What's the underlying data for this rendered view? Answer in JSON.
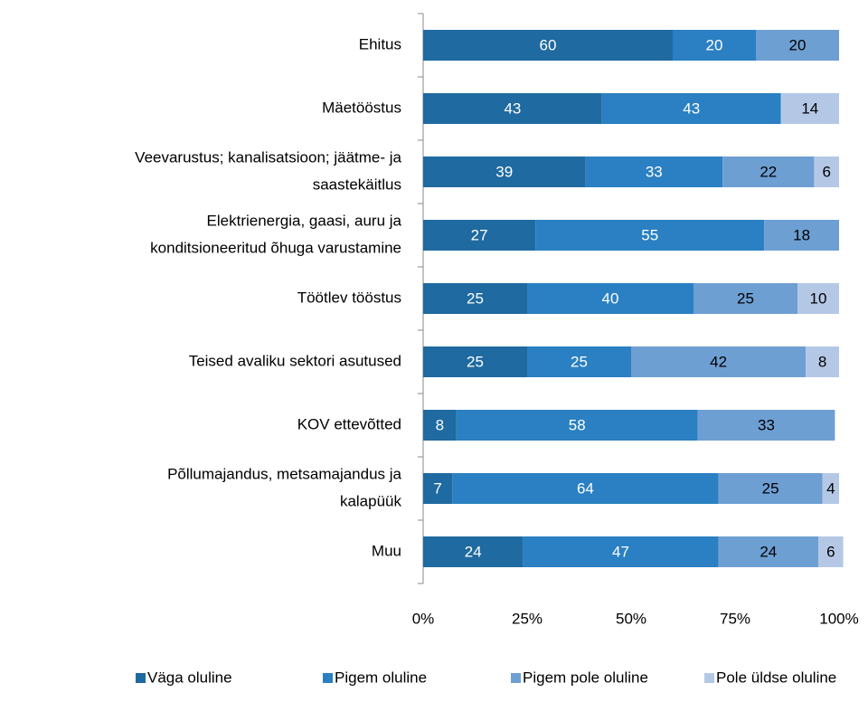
{
  "chart_data": {
    "type": "stacked-bar-horizontal",
    "categories": [
      "Ehitus",
      "Mäetööstus",
      [
        "Veevarustus; kanalisatsioon; jäätme- ja",
        "saastekäitlus"
      ],
      [
        "Elektrienergia, gaasi, auru ja",
        "konditsioneeritud õhuga varustamine"
      ],
      "Töötlev tööstus",
      "Teised avaliku sektori asutused",
      "KOV ettevõtted",
      [
        "Põllumajandus, metsamajandus ja",
        "kalapüük"
      ],
      "Muu"
    ],
    "series": [
      {
        "name": "Väga oluline",
        "color": "#1f6aa0",
        "values": [
          60,
          43,
          39,
          27,
          25,
          25,
          8,
          7,
          24
        ]
      },
      {
        "name": "Pigem oluline",
        "color": "#2a80c2",
        "values": [
          20,
          43,
          33,
          55,
          40,
          25,
          58,
          64,
          47
        ]
      },
      {
        "name": "Pigem pole oluline",
        "color": "#6e9fd3",
        "values": [
          20,
          null,
          22,
          18,
          25,
          42,
          33,
          25,
          24
        ]
      },
      {
        "name": "Pole üldse oluline",
        "color": "#b4c8e6",
        "values": [
          null,
          14,
          6,
          null,
          10,
          8,
          null,
          4,
          6
        ]
      }
    ],
    "xlim": [
      0,
      100
    ],
    "xticks": [
      {
        "value": 0,
        "label": "0%"
      },
      {
        "value": 25,
        "label": "25%"
      },
      {
        "value": 50,
        "label": "50%"
      },
      {
        "value": 75,
        "label": "75%"
      },
      {
        "value": 100,
        "label": "100%"
      }
    ],
    "legend": "bottom"
  }
}
